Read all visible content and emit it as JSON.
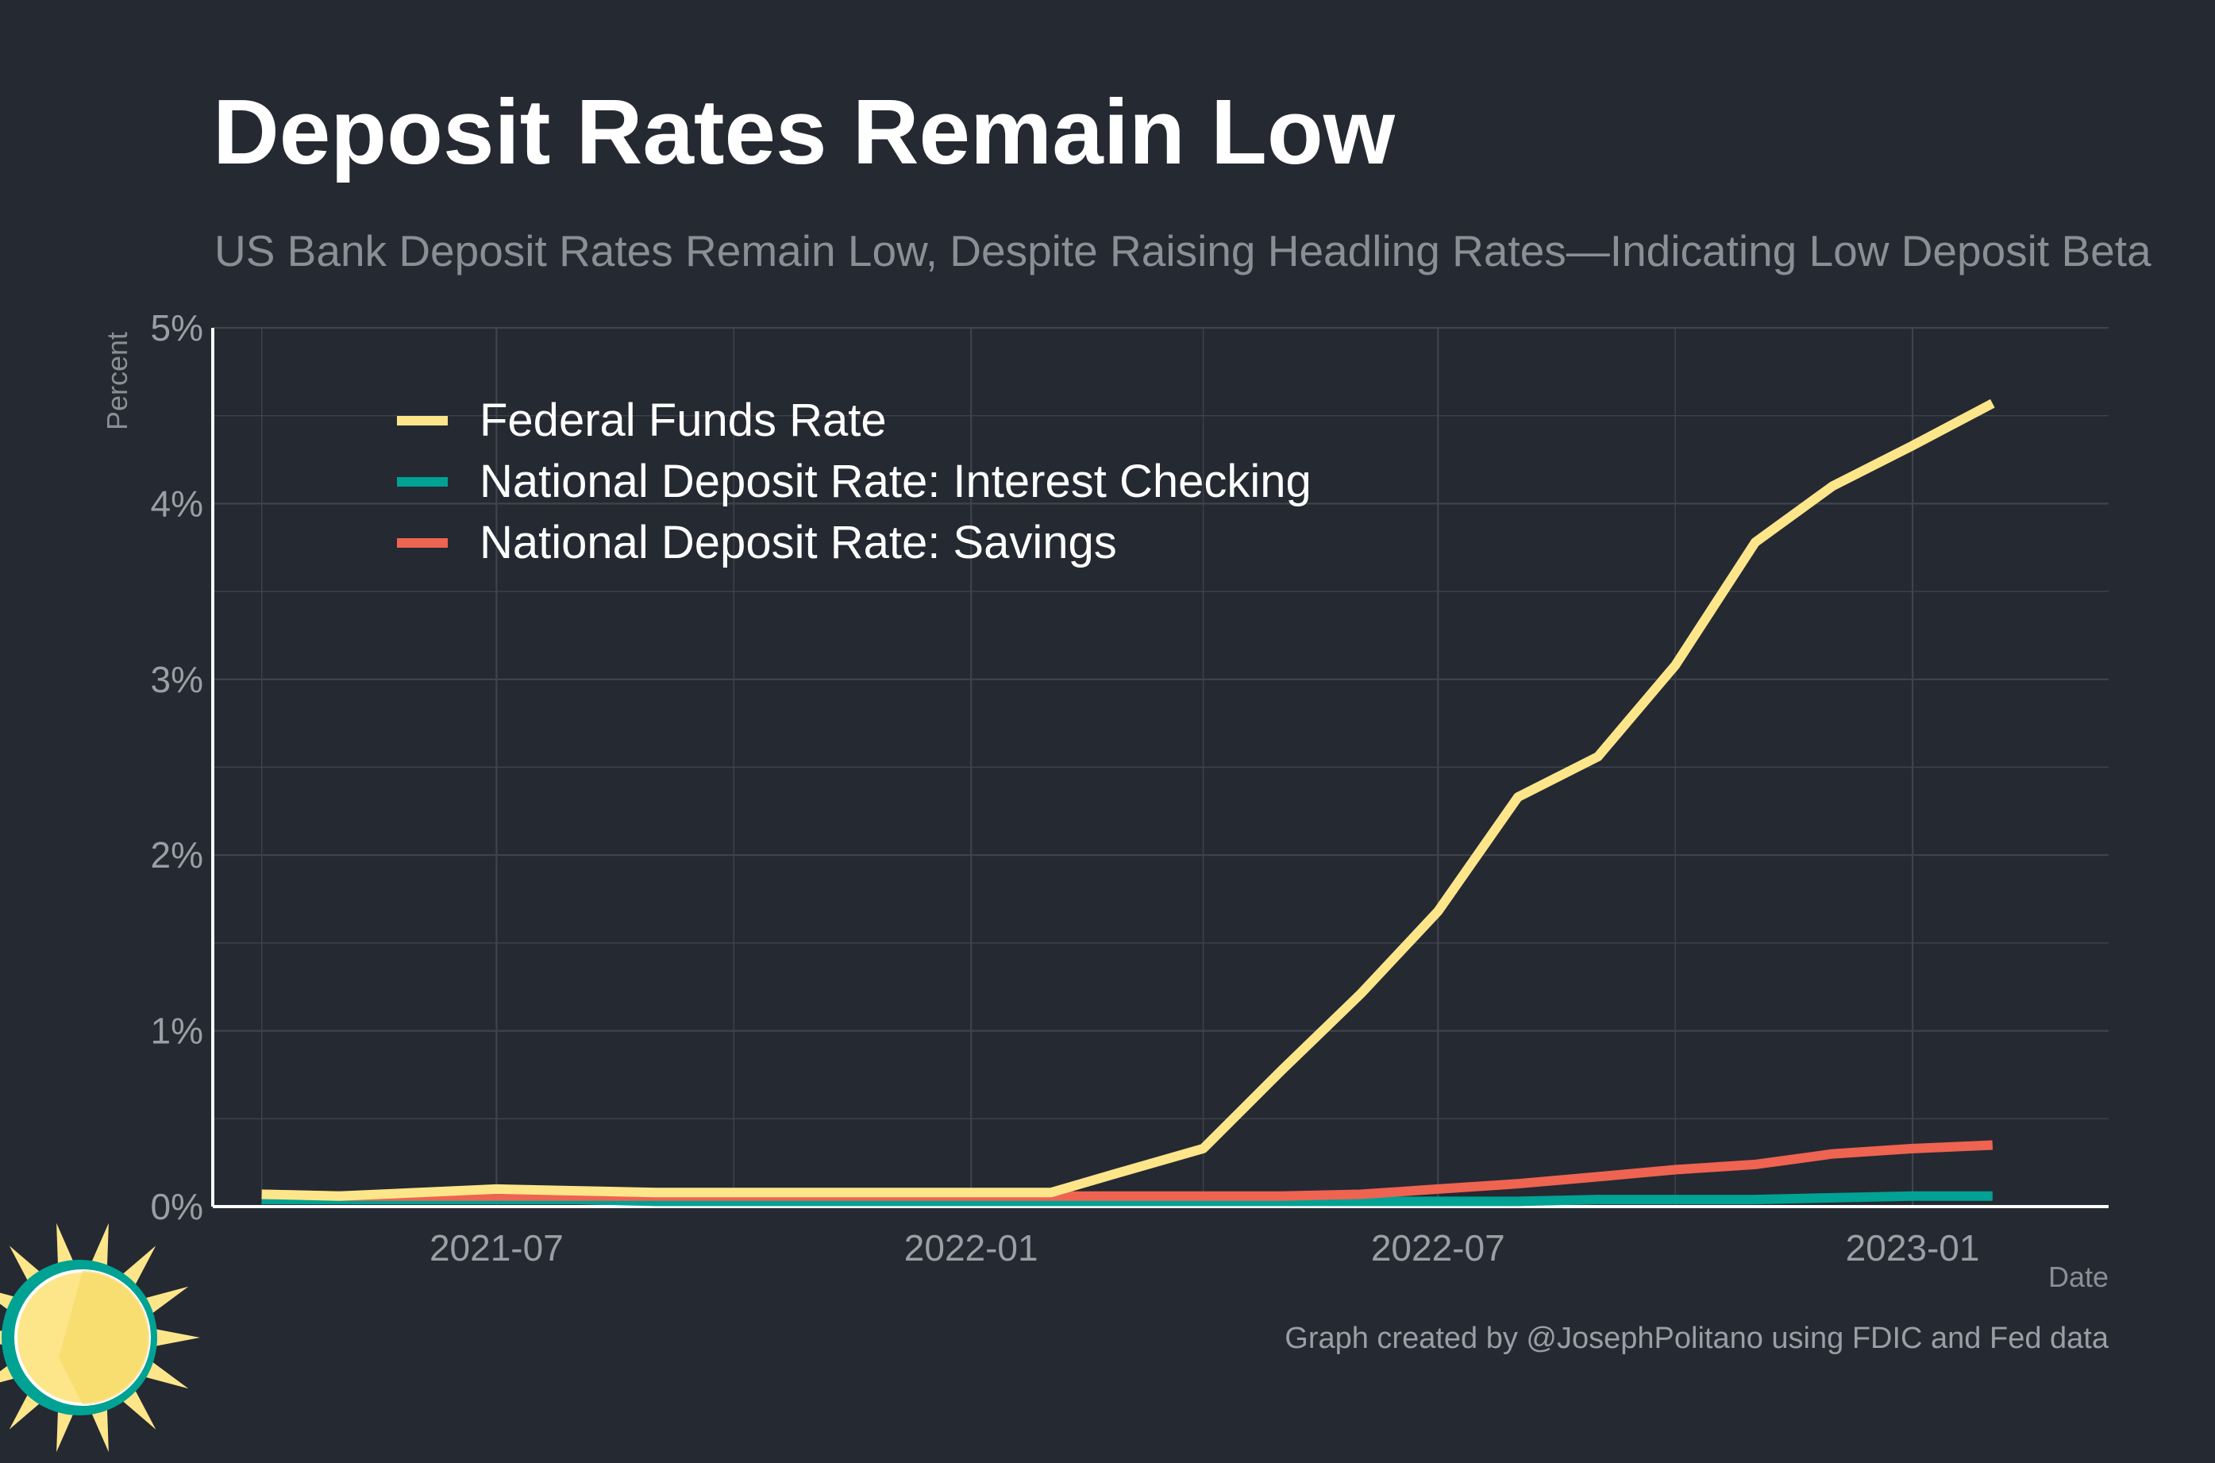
{
  "title": "Deposit Rates Remain Low",
  "subtitle": "US Bank Deposit Rates Remain Low, Despite Raising Headling Rates—Indicating Low Deposit Beta",
  "caption": "Graph created by @JosephPolitano using FDIC and Fed data",
  "colors": {
    "background": "#252932",
    "grid": "#3f434b",
    "axis": "#ffffff",
    "fed_funds": "#fde68a",
    "interest_checking": "#00a294",
    "savings": "#ef6351"
  },
  "icons": {
    "logo": "sun-logo-icon"
  },
  "chart_data": {
    "type": "line",
    "title": "Deposit Rates Remain Low",
    "subtitle": "US Bank Deposit Rates Remain Low, Despite Raising Headling Rates—Indicating Low Deposit Beta",
    "xlabel": "Date",
    "ylabel": "Percent",
    "ylim": [
      0,
      5
    ],
    "xlim": [
      "2021-03-13",
      "2023-03-18"
    ],
    "yticks": [
      0,
      1,
      2,
      3,
      4,
      5
    ],
    "ytick_labels": [
      "0%",
      "1%",
      "2%",
      "3%",
      "4%",
      "5%"
    ],
    "xticks": [
      "2021-07-01",
      "2022-01-01",
      "2022-07-01",
      "2023-01-01"
    ],
    "xtick_labels": [
      "2021-07",
      "2022-01",
      "2022-07",
      "2023-01"
    ],
    "grid": true,
    "legend_position": "top-left",
    "x": [
      "2021-04-01",
      "2021-05-01",
      "2021-06-01",
      "2021-07-01",
      "2021-08-01",
      "2021-09-01",
      "2021-10-01",
      "2021-11-01",
      "2021-12-01",
      "2022-01-01",
      "2022-02-01",
      "2022-03-01",
      "2022-04-01",
      "2022-05-01",
      "2022-06-01",
      "2022-07-01",
      "2022-08-01",
      "2022-09-01",
      "2022-10-01",
      "2022-11-01",
      "2022-12-01",
      "2023-01-01",
      "2023-02-01"
    ],
    "series": [
      {
        "name": "Federal Funds Rate",
        "color": "#fde68a",
        "values": [
          0.07,
          0.06,
          0.08,
          0.1,
          0.09,
          0.08,
          0.08,
          0.08,
          0.08,
          0.08,
          0.08,
          0.2,
          0.33,
          0.77,
          1.21,
          1.68,
          2.33,
          2.56,
          3.08,
          3.78,
          4.1,
          4.33,
          4.57
        ]
      },
      {
        "name": "National Deposit Rate: Interest Checking",
        "color": "#00a294",
        "values": [
          0.04,
          0.04,
          0.04,
          0.04,
          0.04,
          0.03,
          0.03,
          0.03,
          0.03,
          0.03,
          0.03,
          0.03,
          0.03,
          0.03,
          0.03,
          0.03,
          0.03,
          0.04,
          0.04,
          0.04,
          0.05,
          0.06,
          0.06
        ]
      },
      {
        "name": "National Deposit Rate: Savings",
        "color": "#ef6351",
        "values": [
          0.07,
          0.06,
          0.06,
          0.06,
          0.06,
          0.06,
          0.06,
          0.06,
          0.06,
          0.06,
          0.06,
          0.06,
          0.06,
          0.06,
          0.07,
          0.1,
          0.13,
          0.17,
          0.21,
          0.24,
          0.3,
          0.33,
          0.35
        ]
      }
    ]
  }
}
